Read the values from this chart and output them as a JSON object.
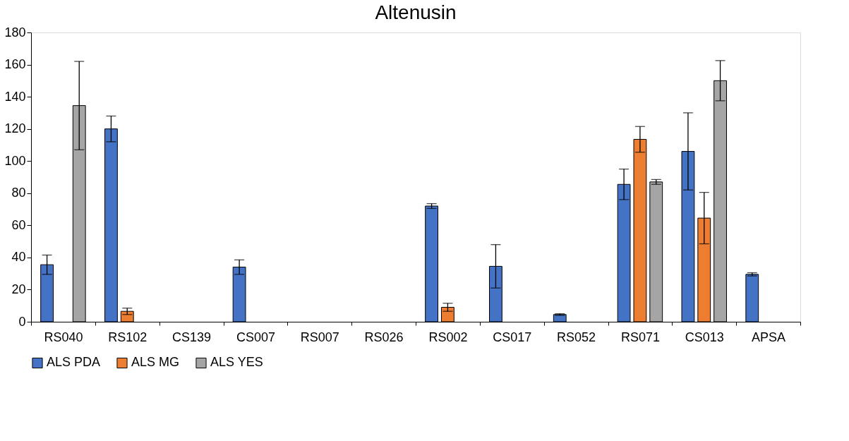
{
  "chart_data": {
    "type": "bar",
    "title": "Altenusin",
    "categories": [
      "RS040",
      "RS102",
      "CS139",
      "CS007",
      "RS007",
      "RS026",
      "RS002",
      "CS017",
      "RS052",
      "RS071",
      "CS013",
      "APSA"
    ],
    "series": [
      {
        "name": "ALS PDA",
        "color": "#4472c4",
        "values": [
          35.5,
          120,
          null,
          34,
          null,
          null,
          72,
          34.5,
          4.5,
          85.5,
          106,
          29.5
        ],
        "errors": [
          6,
          8,
          null,
          4.5,
          null,
          null,
          1.5,
          13.5,
          0.5,
          9.5,
          24,
          1
        ]
      },
      {
        "name": "ALS MG",
        "color": "#ed7d31",
        "values": [
          null,
          6.5,
          null,
          null,
          null,
          null,
          9,
          null,
          null,
          113.5,
          64.5,
          null
        ],
        "errors": [
          null,
          2,
          null,
          null,
          null,
          null,
          2.5,
          null,
          null,
          8,
          16,
          null
        ]
      },
      {
        "name": "ALS YES",
        "color": "#a5a5a5",
        "values": [
          134.5,
          null,
          null,
          null,
          null,
          null,
          null,
          null,
          null,
          87,
          150,
          null
        ],
        "errors": [
          27.5,
          null,
          null,
          null,
          null,
          null,
          null,
          null,
          null,
          1.5,
          12.5,
          null
        ]
      }
    ],
    "ylim": [
      0,
      180
    ],
    "yticks": [
      0,
      20,
      40,
      60,
      80,
      100,
      120,
      140,
      160,
      180
    ],
    "grid": false,
    "legend": "bottom"
  }
}
